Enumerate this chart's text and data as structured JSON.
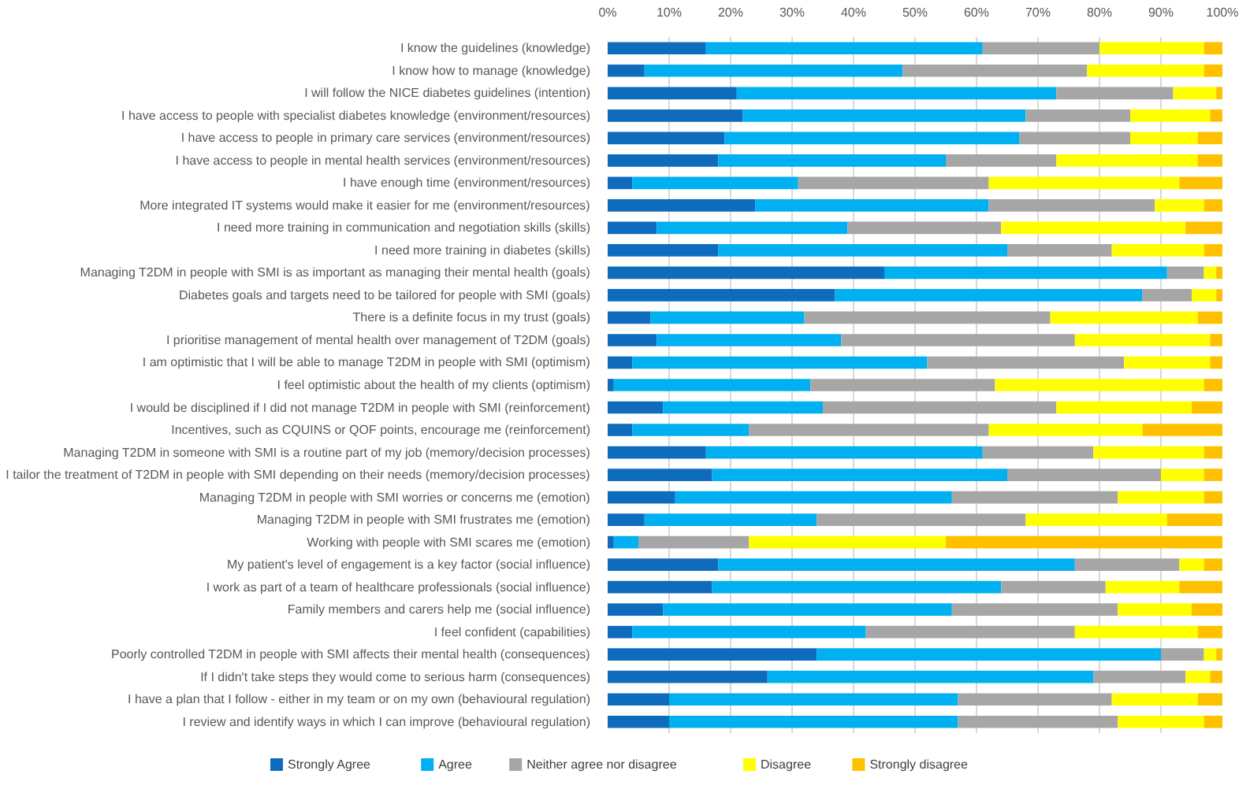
{
  "chart_data": {
    "type": "bar",
    "orientation": "horizontal",
    "stacked": true,
    "categories": [
      "I know the guidelines (knowledge)",
      "I know how to manage (knowledge)",
      "I will follow the NICE diabetes guidelines (intention)",
      "I have access to people with specialist diabetes knowledge (environment/resources)",
      "I have access to people in primary care services (environment/resources)",
      "I have access to people in mental health services (environment/resources)",
      "I have enough time (environment/resources)",
      "More integrated IT systems would make it easier for me (environment/resources)",
      "I need more training in communication and negotiation skills (skills)",
      "I need more training in diabetes (skills)",
      "Managing T2DM in people with SMI is as important as managing their mental health (goals)",
      "Diabetes goals and targets need to be tailored for people with SMI (goals)",
      "There is a definite focus in my trust (goals)",
      "I prioritise management of mental health over management of T2DM (goals)",
      "I am optimistic that I will be able to manage T2DM in people with SMI (optimism)",
      "I feel optimistic about the health of my clients (optimism)",
      "I would be disciplined if I did not manage T2DM in people with SMI (reinforcement)",
      "Incentives, such as CQUINS or QOF points, encourage me (reinforcement)",
      "Managing T2DM in someone with SMI is a routine part of my job (memory/decision processes)",
      "I tailor the treatment of T2DM in people with SMI depending on their needs (memory/decision processes)",
      "Managing T2DM in people with SMI worries or concerns me (emotion)",
      "Managing T2DM in people with SMI frustrates me (emotion)",
      "Working with people with SMI scares me (emotion)",
      "My patient's level of engagement is a key factor (social influence)",
      "I work as part of a team of healthcare professionals (social influence)",
      "Family members and carers help me (social influence)",
      "I feel confident (capabilities)",
      "Poorly controlled T2DM in people with SMI affects their mental health (consequences)",
      "If I didn't take steps they would come to serious harm (consequences)",
      "I have a plan that I follow - either in my team or on my own (behavioural regulation)",
      "I review and identify ways in which I can improve (behavioural regulation)"
    ],
    "series": [
      {
        "name": "Strongly Agree",
        "color": "#0f6cbd",
        "values": [
          16,
          6,
          21,
          22,
          19,
          18,
          4,
          24,
          8,
          18,
          45,
          37,
          7,
          8,
          4,
          1,
          9,
          4,
          16,
          17,
          11,
          6,
          1,
          18,
          17,
          9,
          4,
          34,
          26,
          10,
          10
        ]
      },
      {
        "name": "Agree",
        "color": "#00b0f0",
        "values": [
          45,
          42,
          52,
          46,
          48,
          37,
          27,
          38,
          31,
          47,
          46,
          50,
          25,
          30,
          48,
          32,
          26,
          19,
          45,
          48,
          45,
          28,
          4,
          58,
          47,
          47,
          38,
          56,
          53,
          47,
          47
        ]
      },
      {
        "name": "Neither agree nor disagree",
        "color": "#a6a6a6",
        "values": [
          19,
          30,
          19,
          17,
          18,
          18,
          31,
          27,
          25,
          17,
          6,
          8,
          40,
          38,
          32,
          30,
          38,
          39,
          18,
          25,
          27,
          34,
          18,
          17,
          17,
          27,
          34,
          7,
          15,
          25,
          26
        ]
      },
      {
        "name": "Disagree",
        "color": "#ffff00",
        "values": [
          17,
          19,
          7,
          13,
          11,
          23,
          31,
          8,
          30,
          15,
          2,
          4,
          24,
          22,
          14,
          34,
          22,
          25,
          18,
          7,
          14,
          23,
          32,
          4,
          12,
          12,
          20,
          2,
          4,
          14,
          14
        ]
      },
      {
        "name": "Strongly disagree",
        "color": "#ffc000",
        "values": [
          3,
          3,
          1,
          2,
          4,
          4,
          7,
          3,
          6,
          3,
          1,
          1,
          4,
          2,
          2,
          3,
          5,
          13,
          3,
          3,
          3,
          9,
          45,
          3,
          7,
          5,
          4,
          1,
          2,
          4,
          3
        ]
      }
    ],
    "xlim": [
      0,
      100
    ],
    "xticks": [
      {
        "value": 0,
        "label": "0%"
      },
      {
        "value": 10,
        "label": "10%"
      },
      {
        "value": 20,
        "label": "20%"
      },
      {
        "value": 30,
        "label": "30%"
      },
      {
        "value": 40,
        "label": "40%"
      },
      {
        "value": 50,
        "label": "50%"
      },
      {
        "value": 60,
        "label": "60%"
      },
      {
        "value": 70,
        "label": "70%"
      },
      {
        "value": 80,
        "label": "80%"
      },
      {
        "value": 90,
        "label": "90%"
      },
      {
        "value": 100,
        "label": "100%"
      }
    ],
    "grid": "x",
    "legend": "bottom"
  }
}
